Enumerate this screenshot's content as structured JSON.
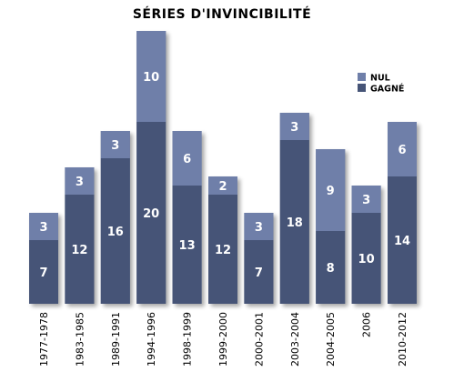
{
  "chart_data": {
    "type": "bar",
    "stacked": true,
    "title": "SÉRIES D'INVINCIBILITÉ",
    "categories": [
      "1977-1978",
      "1983-1985",
      "1989-1991",
      "1994-1996",
      "1998-1999",
      "1999-2000",
      "2000-2001",
      "2003-2004",
      "2004-2005",
      "2006",
      "2010-2012"
    ],
    "series": [
      {
        "name": "GAGNÉ",
        "color": "#465477",
        "values": [
          7,
          12,
          16,
          20,
          13,
          12,
          7,
          18,
          8,
          10,
          14
        ]
      },
      {
        "name": "NUL",
        "color": "#6f7fa9",
        "values": [
          3,
          3,
          3,
          10,
          6,
          2,
          3,
          3,
          9,
          3,
          6
        ]
      }
    ],
    "legend": {
      "position": "top-right",
      "order": [
        "NUL",
        "GAGNÉ"
      ]
    },
    "ylim": [
      0,
      30
    ],
    "grid": false,
    "xlabel": "",
    "ylabel": ""
  }
}
